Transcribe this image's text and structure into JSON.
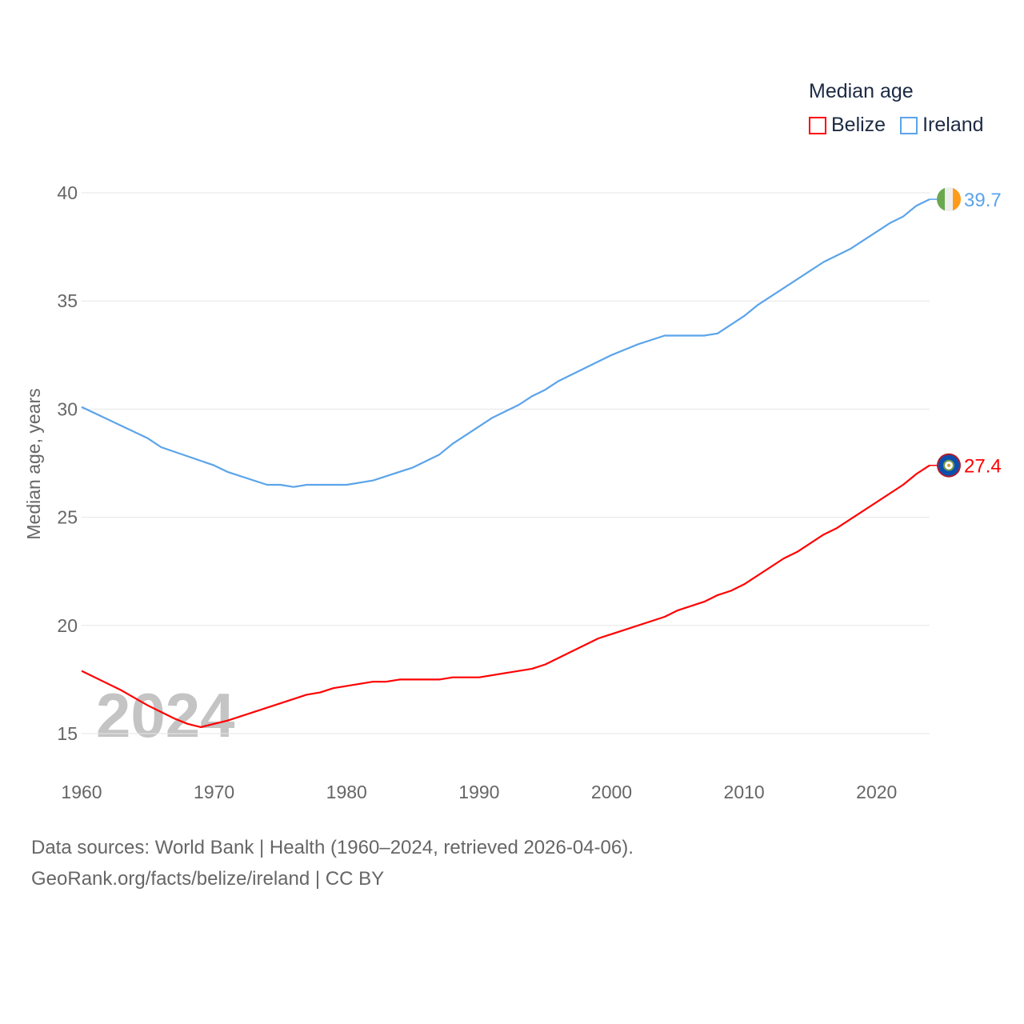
{
  "chart_data": {
    "type": "line",
    "title": "Median age",
    "ylabel": "Median age, years",
    "xlabel": "",
    "xlim": [
      1960,
      2024
    ],
    "ylim": [
      15,
      40
    ],
    "yticks": [
      "15",
      "20",
      "25",
      "30",
      "35",
      "40"
    ],
    "xticks": [
      "1960",
      "1970",
      "1980",
      "1990",
      "2000",
      "2010",
      "2020"
    ],
    "grid": true,
    "legend_placement": "top-right",
    "year_watermark": "2024",
    "series": [
      {
        "name": "Belize",
        "color": "#ff0000",
        "end_label": "27.4",
        "flag": "belize-flag",
        "points": [
          [
            1960,
            17.9
          ],
          [
            1963,
            17.0
          ],
          [
            1965,
            16.3
          ],
          [
            1966,
            16.0
          ],
          [
            1967,
            15.7
          ],
          [
            1968,
            15.45
          ],
          [
            1969,
            15.3
          ],
          [
            1970,
            15.45
          ],
          [
            1971,
            15.6
          ],
          [
            1974,
            16.2
          ],
          [
            1977,
            16.8
          ],
          [
            1978,
            16.9
          ],
          [
            1979,
            17.1
          ],
          [
            1982,
            17.4
          ],
          [
            1983,
            17.4
          ],
          [
            1984,
            17.5
          ],
          [
            1987,
            17.5
          ],
          [
            1988,
            17.6
          ],
          [
            1990,
            17.6
          ],
          [
            1994,
            18.0
          ],
          [
            1995,
            18.2
          ],
          [
            1999,
            19.4
          ],
          [
            2004,
            20.4
          ],
          [
            2005,
            20.7
          ],
          [
            2007,
            21.1
          ],
          [
            2008,
            21.4
          ],
          [
            2009,
            21.6
          ],
          [
            2010,
            21.9
          ],
          [
            2013,
            23.1
          ],
          [
            2014,
            23.4
          ],
          [
            2016,
            24.2
          ],
          [
            2017,
            24.5
          ],
          [
            2022,
            26.5
          ],
          [
            2023,
            27.0
          ],
          [
            2024,
            27.4
          ]
        ]
      },
      {
        "name": "Ireland",
        "color": "#5ba4ea",
        "end_label": "39.7",
        "flag": "ireland-flag",
        "points": [
          [
            1960,
            30.1
          ],
          [
            1965,
            28.65
          ],
          [
            1966,
            28.24
          ],
          [
            1970,
            27.4
          ],
          [
            1971,
            27.1
          ],
          [
            1974,
            26.5
          ],
          [
            1975,
            26.5
          ],
          [
            1976,
            26.4
          ],
          [
            1977,
            26.5
          ],
          [
            1980,
            26.5
          ],
          [
            1982,
            26.7
          ],
          [
            1985,
            27.3
          ],
          [
            1987,
            27.9
          ],
          [
            1988,
            28.4
          ],
          [
            1991,
            29.6
          ],
          [
            1993,
            30.2
          ],
          [
            1994,
            30.6
          ],
          [
            1995,
            30.9
          ],
          [
            1996,
            31.3
          ],
          [
            1999,
            32.2
          ],
          [
            2000,
            32.5
          ],
          [
            2001,
            32.75
          ],
          [
            2002,
            33.0
          ],
          [
            2004,
            33.4
          ],
          [
            2007,
            33.4
          ],
          [
            2008,
            33.5
          ],
          [
            2010,
            34.3
          ],
          [
            2011,
            34.8
          ],
          [
            2016,
            36.8
          ],
          [
            2018,
            37.4
          ],
          [
            2021,
            38.6
          ],
          [
            2022,
            38.9
          ],
          [
            2023,
            39.4
          ],
          [
            2024,
            39.7
          ]
        ]
      }
    ]
  },
  "footer": {
    "line1": "Data sources: World Bank | Health (1960–2024, retrieved 2026-04-06).",
    "line2": "GeoRank.org/facts/belize/ireland | CC BY"
  }
}
